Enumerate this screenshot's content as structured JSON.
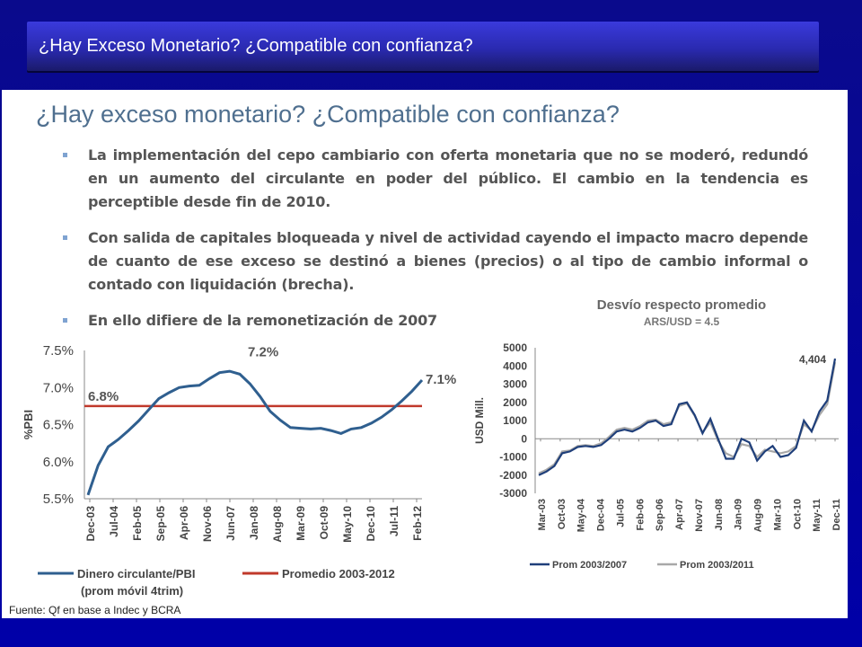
{
  "header": {
    "title": "¿Hay Exceso Monetario? ¿Compatible con confianza?"
  },
  "slide": {
    "title": "¿Hay exceso monetario? ¿Compatible con confianza?",
    "bullets": [
      "La implementación del cepo cambiario con oferta monetaria que no se moderó, redundó en un aumento del circulante en poder del público. El cambio en la tendencia es perceptible desde fin de 2010.",
      "Con salida de capitales bloqueada y nivel de actividad cayendo el impacto macro depende de cuanto de ese exceso se destinó a bienes (precios)  o al tipo de cambio informal  o contado con liquidación (brecha).",
      "En ello difiere de la remonetización de 2007"
    ],
    "source": "Fuente: Qf en base a Indec  y BCRA"
  },
  "chart_data": [
    {
      "type": "line",
      "ylabel": "%PBI",
      "ylim": [
        5.5,
        7.5
      ],
      "yticks": [
        "5.5%",
        "6.0%",
        "6.5%",
        "7.0%",
        "7.5%"
      ],
      "ytick_values": [
        5.5,
        6.0,
        6.5,
        7.0,
        7.5
      ],
      "xtick_labels": [
        "Dec-03",
        "Jul-04",
        "Feb-05",
        "Sep-05",
        "Apr-06",
        "Nov-06",
        "Jun-07",
        "Jan-08",
        "Aug-08",
        "Mar-09",
        "Oct-09",
        "May-10",
        "Dec-10",
        "Jul-11",
        "Feb-12"
      ],
      "annotations": [
        "7.2%",
        "6.8%",
        "7.1%"
      ],
      "series": [
        {
          "name": "Dinero circulante/PBI",
          "name_line2": "(prom móvil 4trim)",
          "color": "#2f5f8f",
          "values": [
            5.55,
            5.95,
            6.2,
            6.3,
            6.42,
            6.55,
            6.7,
            6.85,
            6.93,
            7.0,
            7.02,
            7.03,
            7.12,
            7.2,
            7.22,
            7.18,
            7.05,
            6.88,
            6.68,
            6.56,
            6.46,
            6.45,
            6.44,
            6.45,
            6.42,
            6.38,
            6.44,
            6.46,
            6.52,
            6.6,
            6.7,
            6.82,
            6.95,
            7.1
          ]
        },
        {
          "name": "Promedio 2003-2012",
          "color": "#c0392b",
          "values": [
            6.75,
            6.75
          ]
        }
      ]
    },
    {
      "type": "line",
      "title": "Desvío respecto promedio",
      "subtitle": "ARS/USD = 4.5",
      "ylabel": "USD Mill.",
      "ylim": [
        -3000,
        5000
      ],
      "yticks": [
        "-3000",
        "-2000",
        "-1000",
        "0",
        "1000",
        "2000",
        "3000",
        "4000",
        "5000"
      ],
      "ytick_values": [
        -3000,
        -2000,
        -1000,
        0,
        1000,
        2000,
        3000,
        4000,
        5000
      ],
      "xtick_labels": [
        "Mar-03",
        "Oct-03",
        "May-04",
        "Dec-04",
        "Jul-05",
        "Feb-06",
        "Sep-06",
        "Apr-07",
        "Nov-07",
        "Jun-08",
        "Jan-09",
        "Aug-09",
        "Mar-10",
        "Oct-10",
        "May-11",
        "Dec-11"
      ],
      "annotations": [
        "4,404"
      ],
      "series": [
        {
          "name": "Prom 2003/2007",
          "color": "#1f3f7a",
          "values": [
            -2000,
            -1800,
            -1500,
            -800,
            -700,
            -450,
            -400,
            -450,
            -350,
            0,
            400,
            500,
            400,
            600,
            900,
            1000,
            700,
            800,
            1900,
            2000,
            1300,
            300,
            1100,
            0,
            -1100,
            -1100,
            0,
            -200,
            -1200,
            -700,
            -400,
            -1000,
            -900,
            -500,
            1000,
            400,
            1500,
            2100,
            4404
          ]
        },
        {
          "name": "Prom 2003/2011",
          "color": "#a8a8a8",
          "values": [
            -1900,
            -1700,
            -1400,
            -700,
            -650,
            -400,
            -350,
            -400,
            -250,
            100,
            500,
            600,
            500,
            700,
            1000,
            1050,
            800,
            900,
            1800,
            1950,
            1250,
            350,
            900,
            -100,
            -800,
            -1000,
            -300,
            -400,
            -1000,
            -600,
            -700,
            -800,
            -700,
            -400,
            800,
            450,
            1300,
            1900,
            4200
          ]
        }
      ]
    }
  ]
}
